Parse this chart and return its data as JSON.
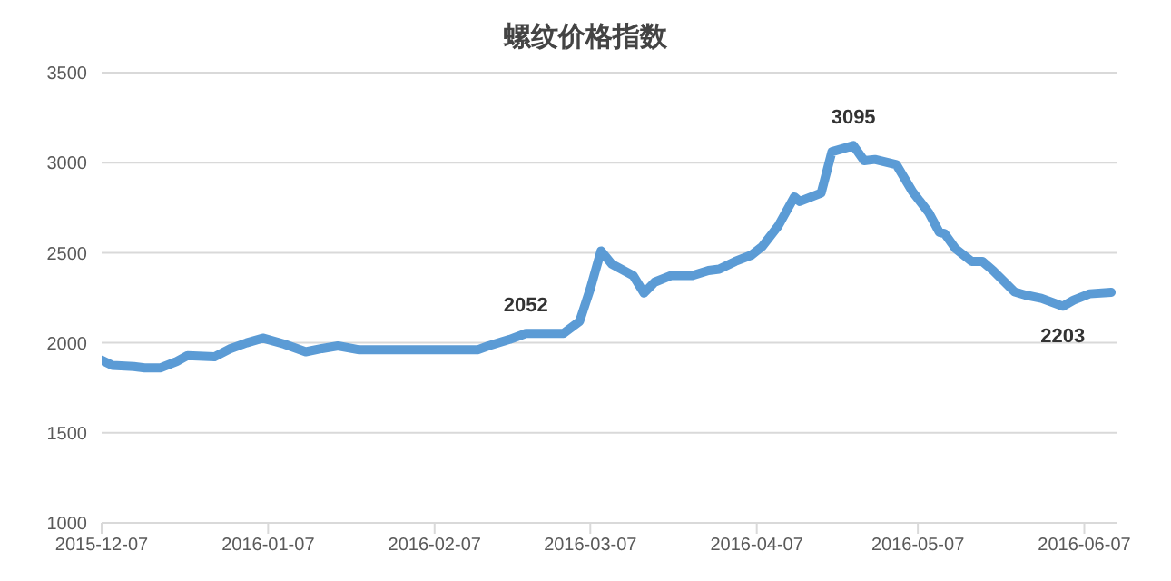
{
  "chart_data": {
    "type": "line",
    "title": "螺纹价格指数",
    "x": [
      "2015-12-07",
      "2015-12-09",
      "2015-12-13",
      "2015-12-15",
      "2015-12-18",
      "2015-12-21",
      "2015-12-23",
      "2015-12-28",
      "2015-12-31",
      "2016-01-03",
      "2016-01-06",
      "2016-01-10",
      "2016-01-14",
      "2016-01-17",
      "2016-01-20",
      "2016-01-24",
      "2016-02-01",
      "2016-02-15",
      "2016-02-17",
      "2016-02-21",
      "2016-02-24",
      "2016-03-02",
      "2016-03-05",
      "2016-03-07",
      "2016-03-09",
      "2016-03-11",
      "2016-03-15",
      "2016-03-17",
      "2016-03-19",
      "2016-03-22",
      "2016-03-26",
      "2016-03-29",
      "2016-03-31",
      "2016-04-03",
      "2016-04-06",
      "2016-04-08",
      "2016-04-11",
      "2016-04-14",
      "2016-04-15",
      "2016-04-19",
      "2016-04-21",
      "2016-04-25",
      "2016-04-27",
      "2016-04-29",
      "2016-05-03",
      "2016-05-06",
      "2016-05-09",
      "2016-05-11",
      "2016-05-12",
      "2016-05-14",
      "2016-05-17",
      "2016-05-19",
      "2016-05-21",
      "2016-05-25",
      "2016-05-27",
      "2016-05-30",
      "2016-06-03",
      "2016-06-05",
      "2016-06-08",
      "2016-06-12"
    ],
    "series": [
      {
        "color": "#5b9bd5",
        "values": [
          1904,
          1875,
          1868,
          1861,
          1861,
          1897,
          1929,
          1922,
          1968,
          2000,
          2026,
          1993,
          1950,
          1968,
          1983,
          1961,
          1961,
          1961,
          1983,
          2019,
          2052,
          2052,
          2119,
          2300,
          2510,
          2437,
          2373,
          2276,
          2337,
          2373,
          2373,
          2401,
          2409,
          2452,
          2487,
          2534,
          2649,
          2810,
          2785,
          2832,
          3061,
          3095,
          3011,
          3018,
          2989,
          2839,
          2724,
          2613,
          2606,
          2523,
          2452,
          2452,
          2401,
          2283,
          2265,
          2247,
          2203,
          2237,
          2272,
          2280
        ]
      }
    ],
    "xlim": [
      "2015-12-07",
      "2016-06-13"
    ],
    "xticks": [
      "2015-12-07",
      "2016-01-07",
      "2016-02-07",
      "2016-03-07",
      "2016-04-07",
      "2016-05-07",
      "2016-06-07"
    ],
    "ylim": [
      1000,
      3500
    ],
    "yticks": [
      1000,
      1500,
      2000,
      2500,
      3000,
      3500
    ],
    "grid": "y",
    "legend": false,
    "marker": "none",
    "line_style": "solid",
    "annotations": [
      {
        "text": "2052",
        "x": "2016-02-24",
        "y": 2052
      },
      {
        "text": "3095",
        "x": "2016-04-25",
        "y": 3095
      },
      {
        "text": "2203",
        "x": "2016-06-03",
        "y": 2203
      }
    ]
  }
}
